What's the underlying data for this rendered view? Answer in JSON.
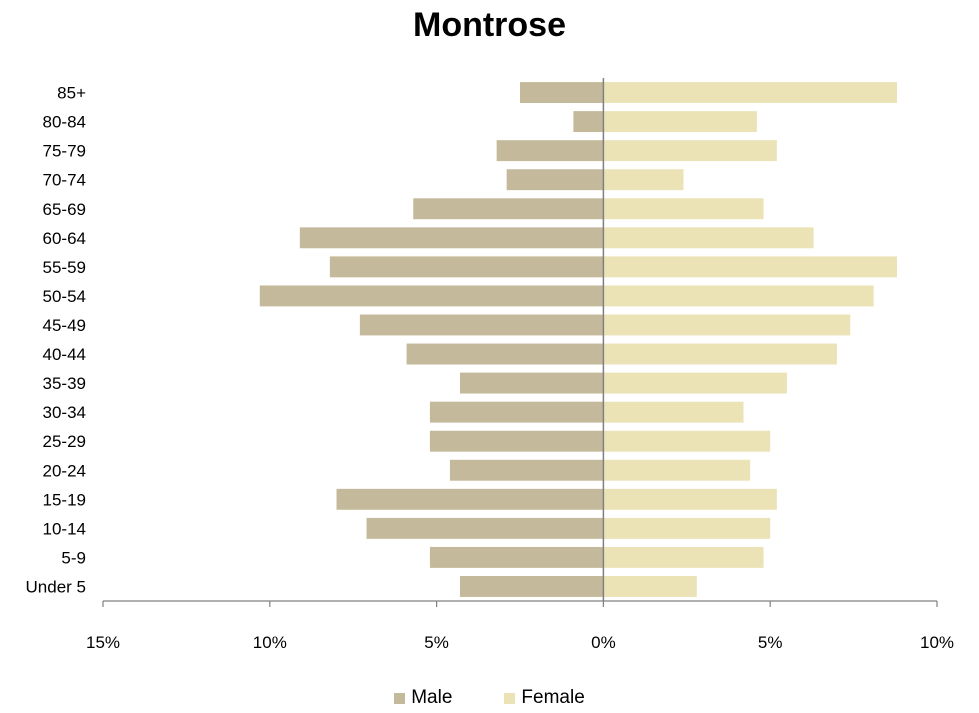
{
  "chart_data": {
    "type": "bar",
    "orientation": "horizontal",
    "title": "Montrose",
    "categories": [
      "85+",
      "80-84",
      "75-79",
      "70-74",
      "65-69",
      "60-64",
      "55-59",
      "50-54",
      "45-49",
      "40-44",
      "35-39",
      "30-34",
      "25-29",
      "20-24",
      "15-19",
      "10-14",
      "5-9",
      "Under 5"
    ],
    "series": [
      {
        "name": "Male",
        "color": "#c4b99a",
        "values": [
          2.5,
          0.9,
          3.2,
          2.9,
          5.7,
          9.1,
          8.2,
          10.3,
          7.3,
          5.9,
          4.3,
          5.2,
          5.2,
          4.6,
          8.0,
          7.1,
          5.2,
          4.3
        ]
      },
      {
        "name": "Female",
        "color": "#ebe2b6",
        "values": [
          8.8,
          4.6,
          5.2,
          2.4,
          4.8,
          6.3,
          8.8,
          8.1,
          7.4,
          7.0,
          5.5,
          4.2,
          5.0,
          4.4,
          5.2,
          5.0,
          4.8,
          2.8
        ]
      }
    ],
    "xlim": [
      -15,
      10
    ],
    "x_ticks": [
      -15,
      -10,
      -5,
      0,
      5,
      10
    ],
    "x_tick_labels": [
      "15%",
      "10%",
      "5%",
      "0%",
      "5%",
      "10%"
    ],
    "xlabel": "",
    "ylabel": "",
    "legend_position": "bottom",
    "grid": false
  }
}
